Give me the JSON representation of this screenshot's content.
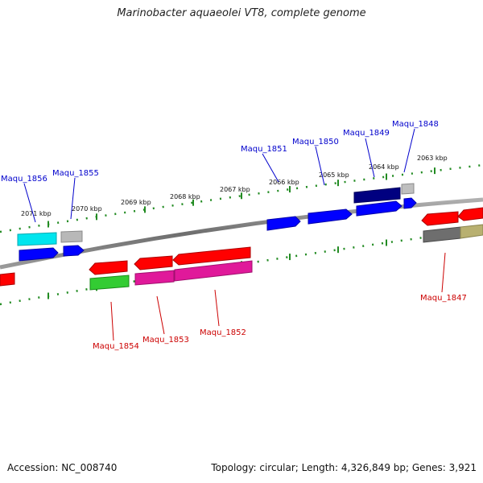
{
  "title": "Marinobacter aquaeolei VT8, complete genome",
  "footer": {
    "accession": "Accession: NC_008740",
    "summary": "Topology: circular; Length: 4,326,849 bp; Genes: 3,921"
  },
  "colors": {
    "backbone": "#7a7a7a",
    "tick": "#228b22",
    "label_blue": "#0000cc",
    "label_red": "#cc0000"
  },
  "ruler": {
    "unit": "kbp",
    "labels": [
      "2071 kbp",
      "2070 kbp",
      "2069 kbp",
      "2068 kbp",
      "2067 kbp",
      "2066 kbp",
      "2065 kbp",
      "2064 kbp",
      "2063 kbp"
    ]
  },
  "genes": {
    "forward_labeled": [
      "Maqu_1856",
      "Maqu_1855",
      "Maqu_1851",
      "Maqu_1850",
      "Maqu_1849",
      "Maqu_1848"
    ],
    "reverse_labeled": [
      "Maqu_1854",
      "Maqu_1853",
      "Maqu_1852",
      "Maqu_1847"
    ]
  }
}
